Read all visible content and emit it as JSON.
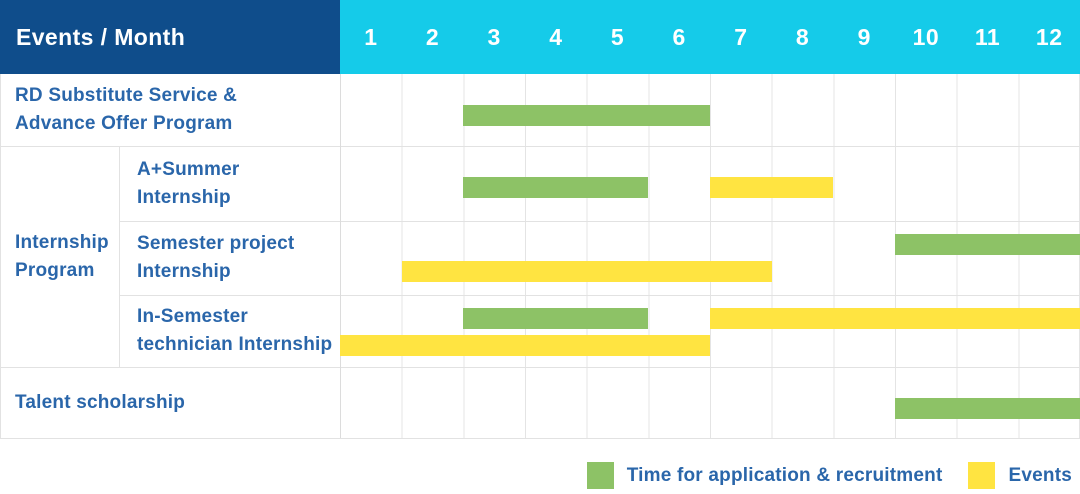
{
  "header": {
    "events_label": "Events / Month",
    "months": [
      "1",
      "2",
      "3",
      "4",
      "5",
      "6",
      "7",
      "8",
      "9",
      "10",
      "11",
      "12"
    ]
  },
  "colors": {
    "navy": "#0f4d8b",
    "cyan": "#15cbe9",
    "recruitment": "#8dc266",
    "event": "#ffe441",
    "label_text": "#2a66aa",
    "gridline": "#e2e2e2"
  },
  "rows": [
    {
      "lines": [
        "RD Substitute Service &",
        "Advance Offer Program"
      ],
      "bars": [
        {
          "type": "recruitment",
          "start": 3,
          "end": 6,
          "lane": "single"
        }
      ]
    },
    {
      "lines": [
        "A+Summer",
        "Internship"
      ],
      "bars": [
        {
          "type": "recruitment",
          "start": 3,
          "end": 5,
          "lane": "single"
        },
        {
          "type": "event",
          "start": 7,
          "end": 8,
          "lane": "single"
        }
      ]
    },
    {
      "lines": [
        "Semester project",
        "Internship"
      ],
      "bars": [
        {
          "type": "recruitment",
          "start": 10,
          "end": 12,
          "lane": "top"
        },
        {
          "type": "event",
          "start": 2,
          "end": 7,
          "lane": "bottom"
        }
      ]
    },
    {
      "lines": [
        "In-Semester",
        "technician Internship"
      ],
      "bars": [
        {
          "type": "recruitment",
          "start": 3,
          "end": 5,
          "lane": "top"
        },
        {
          "type": "event",
          "start": 7,
          "end": 12,
          "lane": "top"
        },
        {
          "type": "event",
          "start": 1,
          "end": 6,
          "lane": "bottom"
        }
      ]
    },
    {
      "lines": [
        "Talent scholarship"
      ],
      "bars": [
        {
          "type": "recruitment",
          "start": 10,
          "end": 12,
          "lane": "single"
        }
      ]
    }
  ],
  "group": {
    "lines": [
      "Internship",
      "Program"
    ]
  },
  "legend": [
    {
      "type": "recruitment",
      "label": "Time for application & recruitment"
    },
    {
      "type": "event",
      "label": "Events"
    }
  ],
  "chart_data": {
    "type": "bar",
    "subtype": "gantt",
    "title": "Events / Month",
    "x_unit": "month",
    "x_range": [
      1,
      12
    ],
    "x_ticks": [
      1,
      2,
      3,
      4,
      5,
      6,
      7,
      8,
      9,
      10,
      11,
      12
    ],
    "categories": [
      "RD Substitute Service & Advance Offer Program",
      "Internship Program / A+Summer Internship",
      "Internship Program / Semester project Internship",
      "Internship Program / In-Semester technician Internship",
      "Talent scholarship"
    ],
    "legend_position": "bottom-right",
    "grid": true,
    "series": [
      {
        "name": "Time for application & recruitment",
        "color": "#8dc266",
        "spans": [
          {
            "category": "RD Substitute Service & Advance Offer Program",
            "start_month": 3,
            "end_month": 6
          },
          {
            "category": "Internship Program / A+Summer Internship",
            "start_month": 3,
            "end_month": 5
          },
          {
            "category": "Internship Program / Semester project Internship",
            "start_month": 10,
            "end_month": 12
          },
          {
            "category": "Internship Program / In-Semester technician Internship",
            "start_month": 3,
            "end_month": 5
          },
          {
            "category": "Talent scholarship",
            "start_month": 10,
            "end_month": 12
          }
        ]
      },
      {
        "name": "Events",
        "color": "#ffe441",
        "spans": [
          {
            "category": "Internship Program / A+Summer Internship",
            "start_month": 7,
            "end_month": 8
          },
          {
            "category": "Internship Program / Semester project Internship",
            "start_month": 2,
            "end_month": 7
          },
          {
            "category": "Internship Program / In-Semester technician Internship",
            "start_month": 7,
            "end_month": 12
          },
          {
            "category": "Internship Program / In-Semester technician Internship",
            "start_month": 1,
            "end_month": 6
          }
        ]
      }
    ]
  }
}
